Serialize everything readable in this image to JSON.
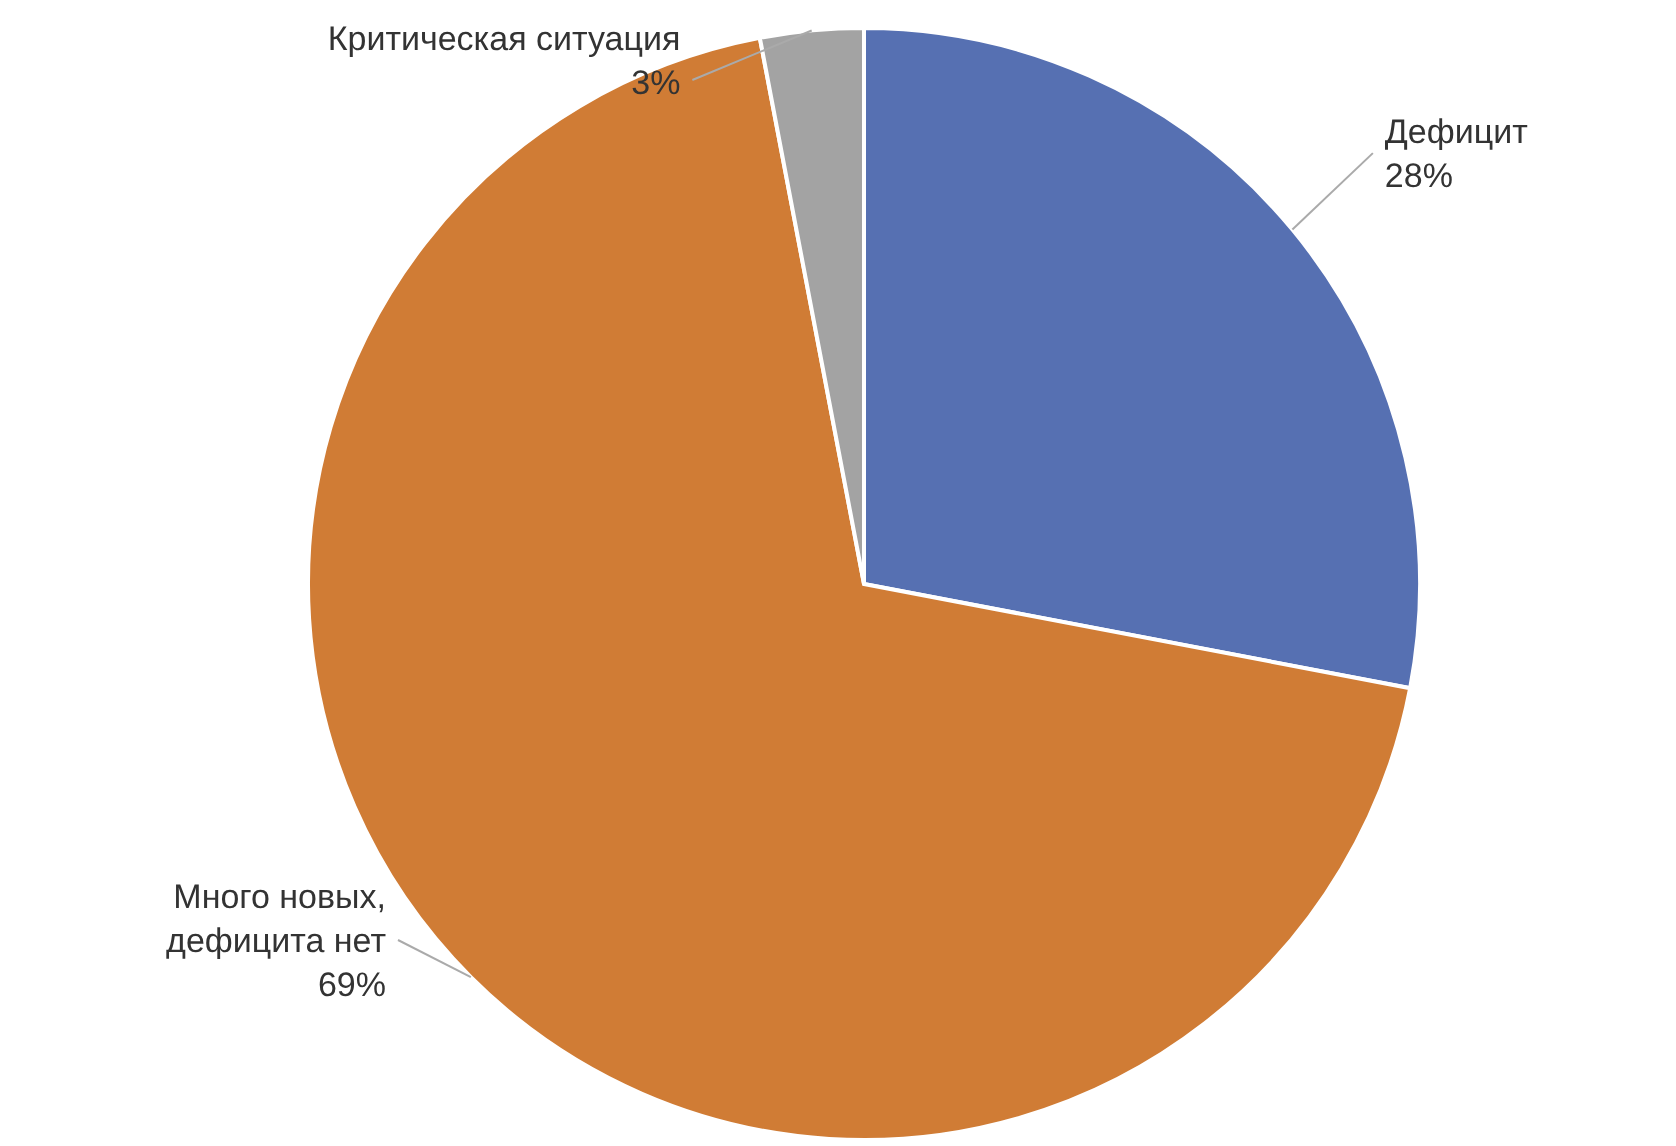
{
  "chart_data": {
    "type": "pie",
    "categories": [
      "Дефицит",
      "Много новых, дефицита нет",
      "Критическая ситуация"
    ],
    "values": [
      28,
      69,
      3
    ],
    "value_labels": [
      "28%",
      "69%",
      "3%"
    ],
    "colors": [
      "#5670b2",
      "#d07c35",
      "#a3a3a3"
    ]
  }
}
